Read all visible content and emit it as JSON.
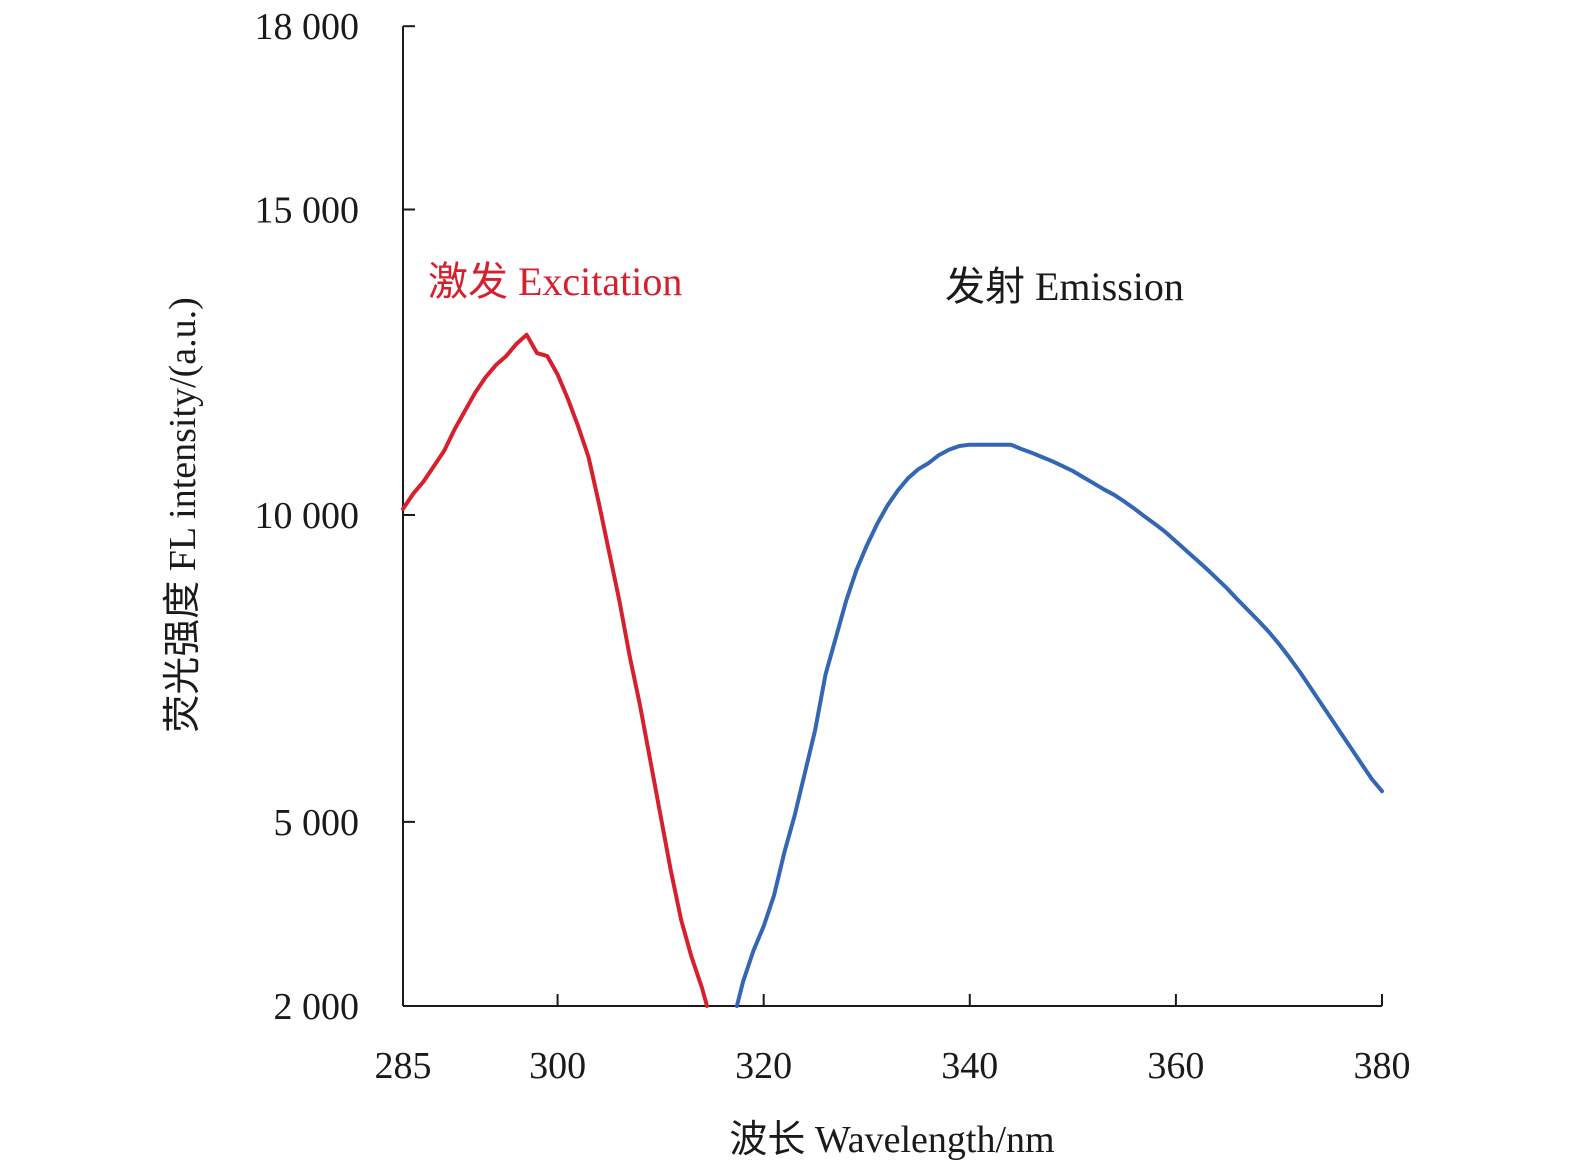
{
  "chart_data": {
    "type": "line",
    "title": "",
    "xlabel": "波长 Wavelength/nm",
    "ylabel": "荧光强度 FL intensity/(a.u.)",
    "xlim": [
      285,
      380
    ],
    "ylim": [
      2000,
      18000
    ],
    "x_ticks": [
      285,
      300,
      320,
      340,
      360,
      380
    ],
    "x_tick_labels": [
      "285",
      "300",
      "320",
      "340",
      "360",
      "380"
    ],
    "y_ticks": [
      2000,
      5000,
      10000,
      15000,
      18000
    ],
    "y_tick_labels": [
      "2 000",
      "5 000",
      "10 000",
      "15 000",
      "18 000"
    ],
    "grid": false,
    "legend": "none",
    "series": [
      {
        "name": "激发 Excitation",
        "color": "#d6202e",
        "points": [
          [
            285,
            10100
          ],
          [
            286,
            10350
          ],
          [
            287,
            10550
          ],
          [
            288,
            10800
          ],
          [
            289,
            11050
          ],
          [
            290,
            11400
          ],
          [
            291,
            11700
          ],
          [
            292,
            12000
          ],
          [
            293,
            12250
          ],
          [
            294,
            12450
          ],
          [
            295,
            12600
          ],
          [
            296,
            12800
          ],
          [
            297,
            12950
          ],
          [
            298,
            12650
          ],
          [
            299,
            12600
          ],
          [
            300,
            12300
          ],
          [
            301,
            11900
          ],
          [
            302,
            11450
          ],
          [
            303,
            10950
          ],
          [
            304,
            10200
          ],
          [
            305,
            9400
          ],
          [
            306,
            8600
          ],
          [
            307,
            7700
          ],
          [
            308,
            6900
          ],
          [
            309,
            6000
          ],
          [
            310,
            5100
          ],
          [
            311,
            4200
          ],
          [
            312,
            3400
          ],
          [
            313,
            2800
          ],
          [
            314,
            2300
          ],
          [
            314.5,
            2000
          ]
        ]
      },
      {
        "name": "发射 Emission",
        "color": "#3366b3",
        "points": [
          [
            317.4,
            2000
          ],
          [
            318,
            2400
          ],
          [
            319,
            2900
          ],
          [
            320,
            3300
          ],
          [
            321,
            3800
          ],
          [
            322,
            4500
          ],
          [
            323,
            5100
          ],
          [
            324,
            5800
          ],
          [
            325,
            6500
          ],
          [
            326,
            7400
          ],
          [
            327,
            8000
          ],
          [
            328,
            8600
          ],
          [
            329,
            9100
          ],
          [
            330,
            9500
          ],
          [
            331,
            9850
          ],
          [
            332,
            10150
          ],
          [
            333,
            10400
          ],
          [
            334,
            10600
          ],
          [
            335,
            10750
          ],
          [
            336,
            10850
          ],
          [
            337,
            10980
          ],
          [
            338,
            11070
          ],
          [
            339,
            11130
          ],
          [
            340,
            11150
          ],
          [
            341,
            11150
          ],
          [
            342,
            11150
          ],
          [
            343,
            11150
          ],
          [
            344,
            11150
          ],
          [
            345,
            11080
          ],
          [
            346,
            11020
          ],
          [
            347,
            10950
          ],
          [
            348,
            10880
          ],
          [
            349,
            10800
          ],
          [
            350,
            10720
          ],
          [
            351,
            10620
          ],
          [
            352,
            10520
          ],
          [
            353,
            10420
          ],
          [
            354,
            10330
          ],
          [
            355,
            10220
          ],
          [
            356,
            10100
          ],
          [
            357,
            9970
          ],
          [
            358,
            9850
          ],
          [
            359,
            9720
          ],
          [
            360,
            9570
          ],
          [
            361,
            9420
          ],
          [
            362,
            9270
          ],
          [
            363,
            9120
          ],
          [
            364,
            8960
          ],
          [
            365,
            8800
          ],
          [
            366,
            8620
          ],
          [
            367,
            8450
          ],
          [
            368,
            8280
          ],
          [
            369,
            8100
          ],
          [
            370,
            7900
          ],
          [
            371,
            7680
          ],
          [
            372,
            7450
          ],
          [
            373,
            7200
          ],
          [
            374,
            6950
          ],
          [
            375,
            6700
          ],
          [
            376,
            6450
          ],
          [
            377,
            6200
          ],
          [
            378,
            5950
          ],
          [
            379,
            5700
          ],
          [
            380,
            5500
          ]
        ]
      }
    ]
  }
}
